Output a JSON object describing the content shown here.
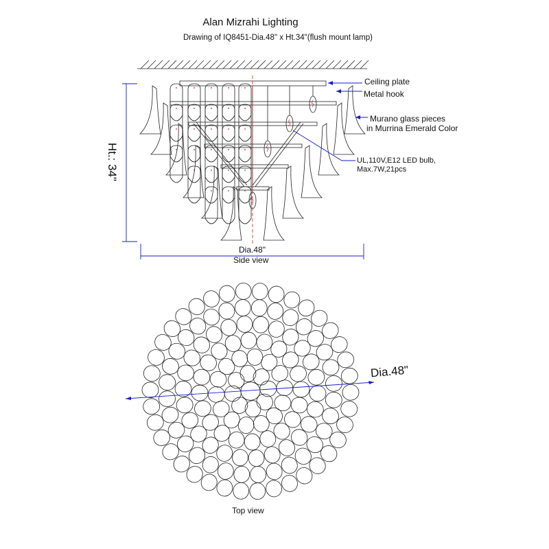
{
  "header": {
    "title": "Alan Mizrahi Lighting",
    "subtitle": "Drawing of IQ8451-Dia.48\" x Ht.34\"(flush mount lamp)"
  },
  "side_view": {
    "caption": "Side view",
    "height_label": "Ht.: 34\"",
    "width_label": "Dia.48\"",
    "callouts": {
      "ceiling_plate": "Ceiling plate",
      "metal_hook": "Metal hook",
      "glass_line1": "Murano glass pieces",
      "glass_line2": "in Murrina Emerald Color",
      "bulb_line1": "UL,110V,E12 LED bulb,",
      "bulb_line2": "Max.7W,21pcs"
    }
  },
  "top_view": {
    "caption": "Top view",
    "dia_label": "Dia.48\""
  },
  "colors": {
    "dimension": "#1a1acc",
    "centerline": "#cc2222",
    "lines": "#222222"
  }
}
